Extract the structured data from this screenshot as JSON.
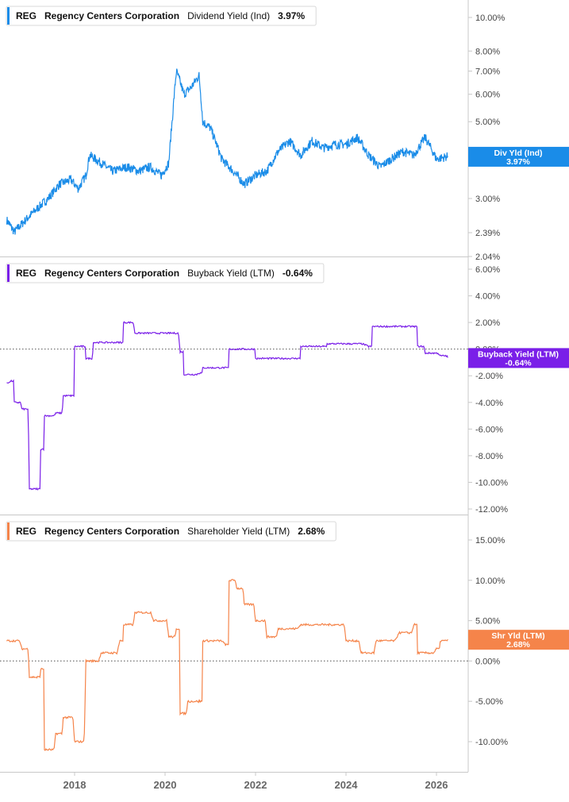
{
  "panels": [
    {
      "ticker": "REG",
      "company": "Regency Centers Corporation",
      "metric": "Dividend Yield (Ind)",
      "value": "3.97%",
      "accent": "#1a8ce8",
      "badge_line1": "Div Yld (Ind)",
      "badge_line2": "3.97%"
    },
    {
      "ticker": "REG",
      "company": "Regency Centers Corporation",
      "metric": "Buyback Yield (LTM)",
      "value": "-0.64%",
      "accent": "#7a1fe8",
      "badge_line1": "Buyback Yield (LTM)",
      "badge_line2": "-0.64%"
    },
    {
      "ticker": "REG",
      "company": "Regency Centers Corporation",
      "metric": "Shareholder Yield (LTM)",
      "value": "2.68%",
      "accent": "#f5844a",
      "badge_line1": "Shr Yld (LTM)",
      "badge_line2": "2.68%"
    }
  ],
  "x_axis": {
    "labels": [
      "2018",
      "2020",
      "2022",
      "2024",
      "2026"
    ]
  },
  "chart_data": [
    {
      "type": "line",
      "name": "Dividend Yield (Ind)",
      "y_scale": "log",
      "ylim": [
        2.04,
        11.5
      ],
      "y_ticks": [
        "10.00%",
        "8.00%",
        "7.00%",
        "6.00%",
        "5.00%",
        "4.00%",
        "3.00%",
        "2.39%",
        "2.04%"
      ],
      "y_tick_values": [
        10,
        8,
        7,
        6,
        5,
        4,
        3,
        2.39,
        2.04
      ],
      "x_range": [
        "2016-07",
        "2026-08"
      ],
      "points": [
        [
          "2016-07",
          2.6
        ],
        [
          "2016-09",
          2.4
        ],
        [
          "2016-12",
          2.6
        ],
        [
          "2017-03",
          2.8
        ],
        [
          "2017-06",
          3.0
        ],
        [
          "2017-09",
          3.3
        ],
        [
          "2017-12",
          3.4
        ],
        [
          "2018-02",
          3.2
        ],
        [
          "2018-04",
          3.5
        ],
        [
          "2018-05",
          4.0
        ],
        [
          "2018-08",
          3.8
        ],
        [
          "2018-11",
          3.6
        ],
        [
          "2019-03",
          3.7
        ],
        [
          "2019-06",
          3.6
        ],
        [
          "2019-09",
          3.7
        ],
        [
          "2019-12",
          3.5
        ],
        [
          "2020-02",
          3.8
        ],
        [
          "2020-03",
          5.2
        ],
        [
          "2020-04",
          7.0
        ],
        [
          "2020-06",
          6.0
        ],
        [
          "2020-08",
          6.3
        ],
        [
          "2020-10",
          6.8
        ],
        [
          "2020-11",
          5.0
        ],
        [
          "2021-01",
          4.8
        ],
        [
          "2021-04",
          3.9
        ],
        [
          "2021-07",
          3.6
        ],
        [
          "2021-10",
          3.3
        ],
        [
          "2022-01",
          3.5
        ],
        [
          "2022-04",
          3.6
        ],
        [
          "2022-07",
          4.1
        ],
        [
          "2022-10",
          4.4
        ],
        [
          "2023-01",
          4.0
        ],
        [
          "2023-04",
          4.4
        ],
        [
          "2023-07",
          4.2
        ],
        [
          "2023-10",
          4.3
        ],
        [
          "2024-01",
          4.3
        ],
        [
          "2024-04",
          4.5
        ],
        [
          "2024-07",
          4.0
        ],
        [
          "2024-10",
          3.7
        ],
        [
          "2025-01",
          3.9
        ],
        [
          "2025-04",
          4.1
        ],
        [
          "2025-07",
          4.0
        ],
        [
          "2025-10",
          4.5
        ],
        [
          "2026-01",
          3.9
        ],
        [
          "2026-04",
          3.97
        ]
      ]
    },
    {
      "type": "line",
      "name": "Buyback Yield (LTM)",
      "y_scale": "linear",
      "ylim": [
        -12,
        6
      ],
      "y_ticks": [
        "6.00%",
        "4.00%",
        "2.00%",
        "0.00%",
        "-2.00%",
        "-4.00%",
        "-6.00%",
        "-8.00%",
        "-10.00%",
        "-12.00%"
      ],
      "y_tick_values": [
        6,
        4,
        2,
        0,
        -2,
        -4,
        -6,
        -8,
        -10,
        -12
      ],
      "zero_line": true,
      "x_range": [
        "2016-07",
        "2026-08"
      ],
      "points": [
        [
          "2016-07",
          -2.5
        ],
        [
          "2016-08",
          -2.4
        ],
        [
          "2016-09",
          -4.0
        ],
        [
          "2016-11",
          -4.5
        ],
        [
          "2017-01",
          -10.5
        ],
        [
          "2017-03",
          -10.5
        ],
        [
          "2017-04",
          -7.5
        ],
        [
          "2017-05",
          -5.0
        ],
        [
          "2017-08",
          -4.8
        ],
        [
          "2017-10",
          -3.5
        ],
        [
          "2017-12",
          -3.5
        ],
        [
          "2018-01",
          0.2
        ],
        [
          "2018-03",
          0.2
        ],
        [
          "2018-04",
          -0.7
        ],
        [
          "2018-06",
          0.5
        ],
        [
          "2019-01",
          0.5
        ],
        [
          "2019-02",
          2.0
        ],
        [
          "2019-05",
          1.2
        ],
        [
          "2020-02",
          1.2
        ],
        [
          "2020-05",
          -0.2
        ],
        [
          "2020-06",
          -1.9
        ],
        [
          "2020-10",
          -1.8
        ],
        [
          "2020-11",
          -1.4
        ],
        [
          "2021-05",
          -1.4
        ],
        [
          "2021-06",
          0.0
        ],
        [
          "2021-12",
          0.0
        ],
        [
          "2022-01",
          -0.7
        ],
        [
          "2022-12",
          -0.7
        ],
        [
          "2023-01",
          0.2
        ],
        [
          "2023-07",
          0.2
        ],
        [
          "2023-08",
          0.4
        ],
        [
          "2024-07",
          0.2
        ],
        [
          "2024-08",
          1.7
        ],
        [
          "2025-07",
          1.7
        ],
        [
          "2025-08",
          0.2
        ],
        [
          "2025-10",
          -0.3
        ],
        [
          "2026-02",
          -0.5
        ],
        [
          "2026-04",
          -0.64
        ]
      ]
    },
    {
      "type": "line",
      "name": "Shareholder Yield (LTM)",
      "y_scale": "linear",
      "ylim": [
        -13.5,
        18
      ],
      "y_ticks": [
        "15.00%",
        "10.00%",
        "5.00%",
        "0.00%",
        "-5.00%",
        "-10.00%"
      ],
      "y_tick_values": [
        15,
        10,
        5,
        0,
        -5,
        -10
      ],
      "zero_line": true,
      "x_range": [
        "2016-07",
        "2026-08"
      ],
      "points": [
        [
          "2016-07",
          2.5
        ],
        [
          "2016-11",
          1.5
        ],
        [
          "2017-01",
          -2.0
        ],
        [
          "2017-03",
          -2.0
        ],
        [
          "2017-04",
          -1.0
        ],
        [
          "2017-05",
          -11.0
        ],
        [
          "2017-08",
          -9.0
        ],
        [
          "2017-10",
          -7.0
        ],
        [
          "2018-01",
          -10.0
        ],
        [
          "2018-04",
          0.0
        ],
        [
          "2018-08",
          1.0
        ],
        [
          "2019-01",
          2.5
        ],
        [
          "2019-02",
          4.5
        ],
        [
          "2019-05",
          6.0
        ],
        [
          "2019-10",
          5.0
        ],
        [
          "2020-02",
          3.0
        ],
        [
          "2020-04",
          4.0
        ],
        [
          "2020-05",
          -6.5
        ],
        [
          "2020-07",
          -5.0
        ],
        [
          "2020-10",
          -5.0
        ],
        [
          "2020-11",
          2.5
        ],
        [
          "2021-05",
          2.0
        ],
        [
          "2021-06",
          10.0
        ],
        [
          "2021-08",
          9.0
        ],
        [
          "2021-10",
          7.0
        ],
        [
          "2022-01",
          5.0
        ],
        [
          "2022-04",
          3.0
        ],
        [
          "2022-07",
          4.0
        ],
        [
          "2023-01",
          4.5
        ],
        [
          "2023-10",
          4.5
        ],
        [
          "2024-01",
          2.5
        ],
        [
          "2024-05",
          1.0
        ],
        [
          "2024-09",
          2.5
        ],
        [
          "2025-03",
          3.5
        ],
        [
          "2025-07",
          4.5
        ],
        [
          "2025-08",
          1.0
        ],
        [
          "2026-01",
          1.5
        ],
        [
          "2026-02",
          2.5
        ],
        [
          "2026-04",
          2.68
        ]
      ]
    }
  ]
}
